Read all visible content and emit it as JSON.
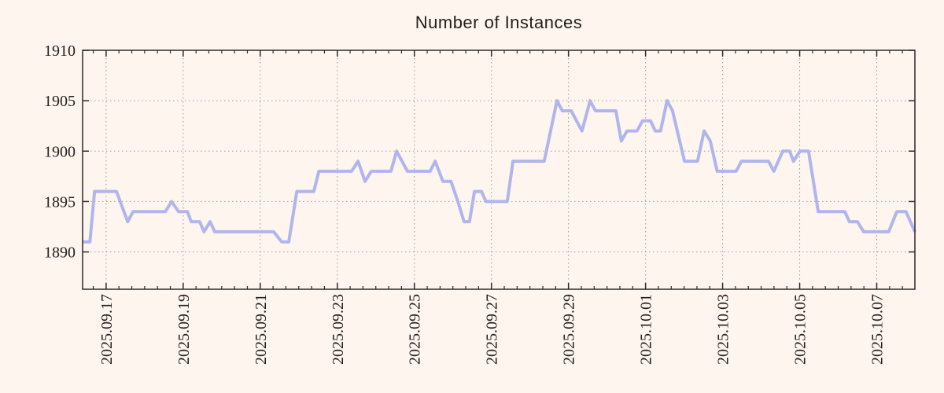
{
  "page": {
    "background": "#fdf5ee"
  },
  "chart_data": {
    "type": "line",
    "title": "Number of Instances",
    "series_name": "instances",
    "legend": "none",
    "grid": "dotted",
    "colors": {
      "line": "#b0b5ee",
      "grid": "#9a9a9a",
      "frame": "#2d2a28",
      "text": "#24201f",
      "background": "#fdf5ee"
    },
    "x_axis": {
      "unit": "days since 2025.09.16 00:00",
      "range": [
        0.39,
        21.99
      ],
      "minor_tick_interval_days": 0.3333,
      "major_ticks": [
        {
          "t": 1,
          "label": "2025.09.17"
        },
        {
          "t": 3,
          "label": "2025.09.19"
        },
        {
          "t": 5,
          "label": "2025.09.21"
        },
        {
          "t": 7,
          "label": "2025.09.23"
        },
        {
          "t": 9,
          "label": "2025.09.25"
        },
        {
          "t": 11,
          "label": "2025.09.27"
        },
        {
          "t": 13,
          "label": "2025.09.29"
        },
        {
          "t": 15,
          "label": "2025.10.01"
        },
        {
          "t": 17,
          "label": "2025.10.03"
        },
        {
          "t": 19,
          "label": "2025.10.05"
        },
        {
          "t": 21,
          "label": "2025.10.07"
        }
      ]
    },
    "y_axis": {
      "range": [
        1886.3,
        1910
      ],
      "major_ticks": [
        1890,
        1895,
        1900,
        1905,
        1910
      ],
      "tick_labels": [
        "1890",
        "1895",
        "1900",
        "1905",
        "1910"
      ]
    },
    "points": [
      [
        0.39,
        1891
      ],
      [
        0.58,
        1891
      ],
      [
        0.7,
        1896
      ],
      [
        1.27,
        1896
      ],
      [
        1.56,
        1893
      ],
      [
        1.7,
        1894
      ],
      [
        2.54,
        1894
      ],
      [
        2.7,
        1895
      ],
      [
        2.88,
        1894
      ],
      [
        3.11,
        1894
      ],
      [
        3.21,
        1893
      ],
      [
        3.43,
        1893
      ],
      [
        3.54,
        1892
      ],
      [
        3.7,
        1893
      ],
      [
        3.82,
        1892
      ],
      [
        5.35,
        1892
      ],
      [
        5.56,
        1891
      ],
      [
        5.74,
        1891
      ],
      [
        5.95,
        1896
      ],
      [
        6.39,
        1896
      ],
      [
        6.52,
        1898
      ],
      [
        7.37,
        1898
      ],
      [
        7.54,
        1899
      ],
      [
        7.72,
        1897
      ],
      [
        7.88,
        1898
      ],
      [
        8.39,
        1898
      ],
      [
        8.54,
        1900
      ],
      [
        8.82,
        1898
      ],
      [
        9.41,
        1898
      ],
      [
        9.54,
        1899
      ],
      [
        9.74,
        1897
      ],
      [
        9.95,
        1897
      ],
      [
        10.13,
        1895
      ],
      [
        10.29,
        1893
      ],
      [
        10.43,
        1893
      ],
      [
        10.56,
        1896
      ],
      [
        10.74,
        1896
      ],
      [
        10.86,
        1895
      ],
      [
        11.41,
        1895
      ],
      [
        11.56,
        1899
      ],
      [
        12.37,
        1899
      ],
      [
        12.7,
        1905
      ],
      [
        12.84,
        1904
      ],
      [
        13.07,
        1904
      ],
      [
        13.35,
        1902
      ],
      [
        13.56,
        1905
      ],
      [
        13.7,
        1904
      ],
      [
        14.23,
        1904
      ],
      [
        14.37,
        1901
      ],
      [
        14.52,
        1902
      ],
      [
        14.78,
        1902
      ],
      [
        14.92,
        1903
      ],
      [
        15.13,
        1903
      ],
      [
        15.25,
        1902
      ],
      [
        15.39,
        1902
      ],
      [
        15.56,
        1905
      ],
      [
        15.7,
        1904
      ],
      [
        16.01,
        1899
      ],
      [
        16.35,
        1899
      ],
      [
        16.52,
        1902
      ],
      [
        16.68,
        1901
      ],
      [
        16.86,
        1898
      ],
      [
        17.35,
        1898
      ],
      [
        17.49,
        1899
      ],
      [
        18.19,
        1899
      ],
      [
        18.33,
        1898
      ],
      [
        18.56,
        1900
      ],
      [
        18.74,
        1900
      ],
      [
        18.84,
        1899
      ],
      [
        19.01,
        1900
      ],
      [
        19.23,
        1900
      ],
      [
        19.48,
        1894
      ],
      [
        20.17,
        1894
      ],
      [
        20.29,
        1893
      ],
      [
        20.5,
        1893
      ],
      [
        20.66,
        1892
      ],
      [
        21.31,
        1892
      ],
      [
        21.52,
        1894
      ],
      [
        21.76,
        1894
      ],
      [
        21.99,
        1892
      ]
    ]
  }
}
